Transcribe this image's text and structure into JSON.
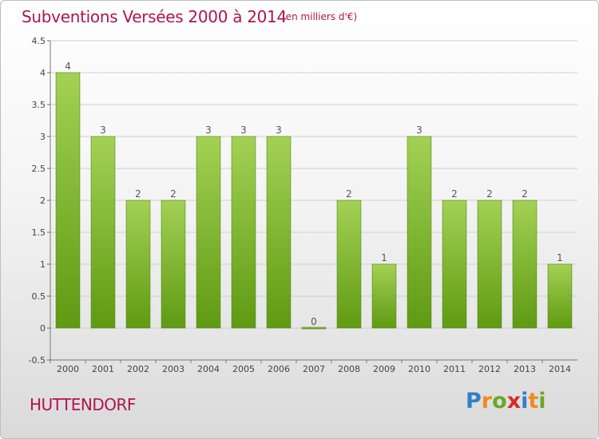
{
  "title": "Subventions Versées 2000 à 2014",
  "subtitle": "(en milliers d'€)",
  "commune": "HUTTENDORF",
  "logo": {
    "text": "Proxiti",
    "letters": [
      {
        "ch": "P",
        "color": "#2f7fc9"
      },
      {
        "ch": "r",
        "color": "#f18a1f"
      },
      {
        "ch": "o",
        "color": "#6aa828"
      },
      {
        "ch": "x",
        "color": "#d72c28"
      },
      {
        "ch": "i",
        "color": "#2f7fc9"
      },
      {
        "ch": "t",
        "color": "#f18a1f"
      },
      {
        "ch": "i",
        "color": "#6aa828"
      }
    ]
  },
  "colors": {
    "title": "#b0144f",
    "bar_light": "#a3d155",
    "bar_dark": "#5f9a12",
    "grid": "#cfcfcf"
  },
  "chart_data": {
    "type": "bar",
    "categories": [
      "2000",
      "2001",
      "2002",
      "2003",
      "2004",
      "2005",
      "2006",
      "2007",
      "2008",
      "2009",
      "2010",
      "2011",
      "2012",
      "2013",
      "2014"
    ],
    "values": [
      4,
      3,
      2,
      2,
      3,
      3,
      3,
      0,
      2,
      1,
      3,
      2,
      2,
      2,
      1
    ],
    "data_labels": [
      "4",
      "3",
      "2",
      "2",
      "3",
      "3",
      "3",
      "0",
      "2",
      "1",
      "3",
      "2",
      "2",
      "2",
      "1"
    ],
    "y_ticks": [
      "-0.5",
      "0",
      "0.5",
      "1",
      "1.5",
      "2",
      "2.5",
      "3",
      "3.5",
      "4",
      "4.5"
    ],
    "ylim": [
      -0.5,
      4.5
    ],
    "grid": true,
    "xlabel": "",
    "ylabel": ""
  }
}
